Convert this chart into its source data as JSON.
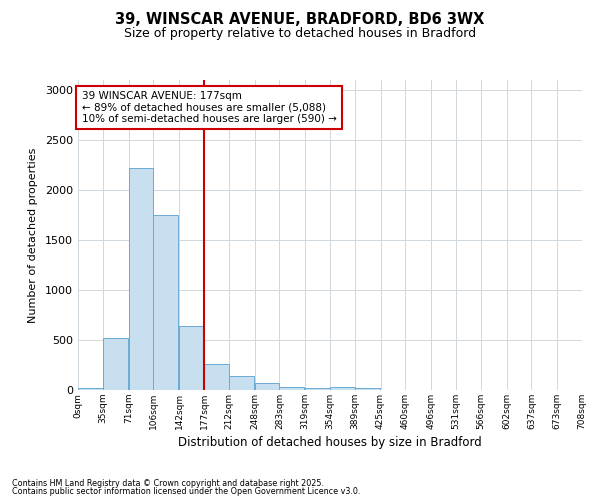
{
  "title1": "39, WINSCAR AVENUE, BRADFORD, BD6 3WX",
  "title2": "Size of property relative to detached houses in Bradford",
  "xlabel": "Distribution of detached houses by size in Bradford",
  "ylabel": "Number of detached properties",
  "bar_color": "#c8dff0",
  "bar_edge_color": "#6aaad4",
  "vline_color": "#cc0000",
  "vline_x": 177,
  "annotation_text": "39 WINSCAR AVENUE: 177sqm\n← 89% of detached houses are smaller (5,088)\n10% of semi-detached houses are larger (590) →",
  "bins": [
    0,
    35,
    71,
    106,
    142,
    177,
    212,
    248,
    283,
    319,
    354,
    389,
    425,
    460,
    496,
    531,
    566,
    602,
    637,
    673,
    708
  ],
  "counts": [
    20,
    520,
    2220,
    1750,
    640,
    260,
    140,
    70,
    30,
    25,
    30,
    20,
    0,
    0,
    0,
    0,
    0,
    0,
    0,
    0
  ],
  "ylim": [
    0,
    3100
  ],
  "yticks": [
    0,
    500,
    1000,
    1500,
    2000,
    2500,
    3000
  ],
  "background_color": "#ffffff",
  "plot_background": "#ffffff",
  "grid_color": "#d0d8e0",
  "footer1": "Contains HM Land Registry data © Crown copyright and database right 2025.",
  "footer2": "Contains public sector information licensed under the Open Government Licence v3.0."
}
